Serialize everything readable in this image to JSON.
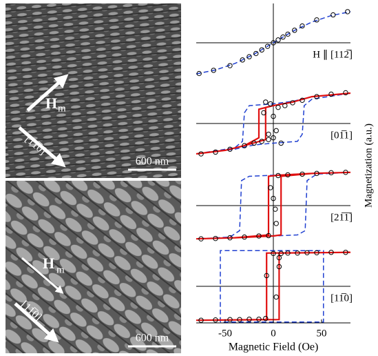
{
  "images": [
    {
      "field_label": "H",
      "field_sub": "m",
      "direction": "[11̅0]",
      "scale_bar": "600 nm"
    },
    {
      "field_label": "H",
      "field_sub": "m",
      "direction": "[11̅0]",
      "scale_bar": "600 nm"
    }
  ],
  "chart_data": [
    {
      "type": "line",
      "label": "H ∥ [112̅]",
      "ylim": [
        -1.1,
        1.1
      ],
      "series": [
        {
          "type": "line",
          "color": "#1f3fd0",
          "dash": true,
          "x": [
            -80,
            -60,
            -40,
            -20,
            0,
            20,
            40,
            60,
            80
          ],
          "values": [
            -0.87,
            -0.76,
            -0.58,
            -0.32,
            0,
            0.32,
            0.58,
            0.76,
            0.87
          ]
        },
        {
          "type": "scatter",
          "color": "#000000",
          "x": [
            -77,
            -62,
            -45,
            -32,
            -25,
            -18,
            -12,
            -6,
            0,
            5,
            10,
            15,
            22,
            30,
            45,
            62,
            77
          ],
          "values": [
            -0.86,
            -0.77,
            -0.64,
            -0.48,
            -0.39,
            -0.3,
            -0.2,
            -0.1,
            0,
            0.08,
            0.16,
            0.24,
            0.35,
            0.47,
            0.64,
            0.78,
            0.87
          ]
        }
      ]
    },
    {
      "type": "line",
      "label": "[01̅1]",
      "ylim": [
        -1.1,
        1.1
      ],
      "series": [
        {
          "type": "line",
          "color": "#1f3fd0",
          "dash": true,
          "x": [
            80,
            40,
            20,
            0,
            -25,
            -30,
            -32,
            -40,
            -80,
            -40,
            -20,
            0,
            25,
            30,
            32,
            40,
            80
          ],
          "values": [
            0.85,
            0.75,
            0.62,
            0.55,
            0.5,
            0.3,
            -0.5,
            -0.68,
            -0.85,
            -0.72,
            -0.6,
            -0.55,
            -0.5,
            -0.3,
            0.5,
            0.68,
            0.85
          ]
        },
        {
          "type": "line",
          "color": "#e01010",
          "dash": false,
          "x": [
            80,
            40,
            20,
            0,
            -15,
            -15,
            -30,
            -50,
            -80,
            -50,
            -30,
            -8,
            -8,
            0,
            20,
            40,
            80
          ],
          "values": [
            0.85,
            0.75,
            0.6,
            0.5,
            0.4,
            -0.4,
            -0.62,
            -0.75,
            -0.85,
            -0.75,
            -0.62,
            -0.45,
            0.45,
            0.5,
            0.6,
            0.75,
            0.85
          ]
        },
        {
          "type": "scatter",
          "color": "#000000",
          "x": [
            -75,
            -60,
            -45,
            -30,
            -20,
            -12,
            -5,
            0,
            5,
            12,
            20,
            30,
            45,
            60,
            75,
            -8,
            -3,
            0,
            3,
            8,
            -10,
            -5
          ],
          "values": [
            -0.85,
            -0.8,
            -0.72,
            -0.62,
            -0.55,
            -0.5,
            -0.45,
            -0.4,
            0.45,
            0.5,
            0.58,
            0.65,
            0.75,
            0.82,
            0.86,
            0.6,
            0.55,
            0.2,
            -0.2,
            -0.55,
            0.3,
            -0.3
          ]
        }
      ]
    },
    {
      "type": "line",
      "label": "[21̅1̅]",
      "ylim": [
        -1.1,
        1.1
      ],
      "series": [
        {
          "type": "line",
          "color": "#1f3fd0",
          "dash": true,
          "x": [
            80,
            40,
            -25,
            -33,
            -35,
            -45,
            -80,
            -40,
            25,
            33,
            35,
            45,
            80
          ],
          "values": [
            0.93,
            0.9,
            0.82,
            0.7,
            -0.7,
            -0.88,
            -0.93,
            -0.9,
            -0.82,
            -0.7,
            0.7,
            0.88,
            0.93
          ]
        },
        {
          "type": "line",
          "color": "#e01010",
          "dash": false,
          "x": [
            80,
            40,
            5,
            -5,
            -5,
            -40,
            -80,
            -40,
            0,
            8,
            8,
            40,
            80
          ],
          "values": [
            0.93,
            0.9,
            0.85,
            0.82,
            -0.82,
            -0.9,
            -0.93,
            -0.9,
            -0.85,
            -0.82,
            0.82,
            0.9,
            0.93
          ]
        },
        {
          "type": "scatter",
          "color": "#000000",
          "x": [
            -75,
            -60,
            -45,
            -30,
            -15,
            -5,
            5,
            15,
            30,
            45,
            60,
            75,
            -3,
            3,
            0,
            2
          ],
          "values": [
            -0.93,
            -0.92,
            -0.9,
            -0.88,
            -0.85,
            -0.84,
            0.84,
            0.86,
            0.88,
            0.9,
            0.92,
            0.93,
            0.5,
            -0.5,
            0.2,
            -0.1
          ]
        }
      ]
    },
    {
      "type": "line",
      "label": "[11̅0]",
      "ylim": [
        -1.1,
        1.1
      ],
      "xlim": [
        -80,
        80
      ],
      "xticks": [
        -50,
        0,
        50
      ],
      "xlabel": "Magnetic Field (Oe)",
      "ylabel": "Magnetization (a.u.)",
      "series": [
        {
          "type": "line",
          "color": "#1f3fd0",
          "dash": true,
          "x": [
            -55,
            -55,
            52,
            52,
            -55
          ],
          "values": [
            -1,
            1,
            1,
            -1,
            -1
          ]
        },
        {
          "type": "line",
          "color": "#e01010",
          "dash": false,
          "x": [
            80,
            -7,
            -7,
            -80,
            6,
            6,
            80
          ],
          "values": [
            0.95,
            0.93,
            -0.93,
            -0.95,
            -0.93,
            0.93,
            0.95
          ]
        },
        {
          "type": "scatter",
          "color": "#000000",
          "x": [
            -75,
            -60,
            -45,
            -35,
            -25,
            -15,
            -8,
            0,
            8,
            15,
            25,
            35,
            45,
            60,
            75,
            -7,
            6,
            6,
            3
          ],
          "values": [
            -0.95,
            -0.94,
            -0.93,
            -0.93,
            -0.92,
            -0.92,
            -0.9,
            0.92,
            0.92,
            0.93,
            0.93,
            0.94,
            0.94,
            0.95,
            0.95,
            0.3,
            0.8,
            0.55,
            -0.3
          ]
        }
      ]
    }
  ]
}
